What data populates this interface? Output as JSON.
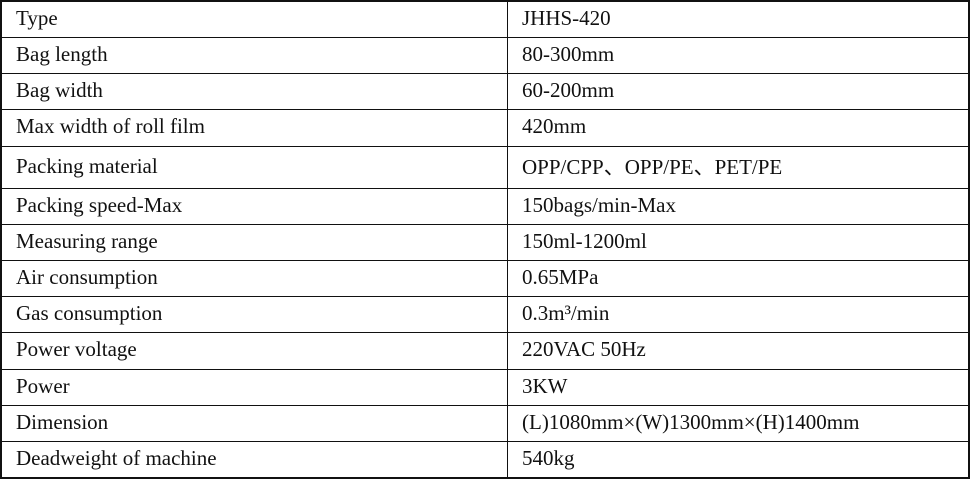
{
  "table": {
    "name": "machine-specification-table",
    "columns": [
      "parameter",
      "value"
    ],
    "rows": [
      {
        "label": "Type",
        "value": "JHHS-420"
      },
      {
        "label": "Bag length",
        "value": "80-300mm"
      },
      {
        "label": "Bag width",
        "value": "60-200mm"
      },
      {
        "label": "Max width of roll film",
        "value": "420mm"
      },
      {
        "label": "Packing material",
        "value": "OPP/CPP、OPP/PE、PET/PE"
      },
      {
        "label": "Packing speed-Max",
        "value": "150bags/min-Max"
      },
      {
        "label": "Measuring range",
        "value": "150ml-1200ml"
      },
      {
        "label": "Air consumption",
        "value": "0.65MPa"
      },
      {
        "label": "Gas consumption",
        "value": "0.3m³/min"
      },
      {
        "label": "Power voltage",
        "value": "220VAC 50Hz"
      },
      {
        "label": "Power",
        "value": "3KW"
      },
      {
        "label": "Dimension",
        "value": "(L)1080mm×(W)1300mm×(H)1400mm"
      },
      {
        "label": "Deadweight of machine",
        "value": "540kg"
      }
    ],
    "colors": {
      "border": "#111111",
      "text": "#111111",
      "background": "#ffffff"
    }
  }
}
